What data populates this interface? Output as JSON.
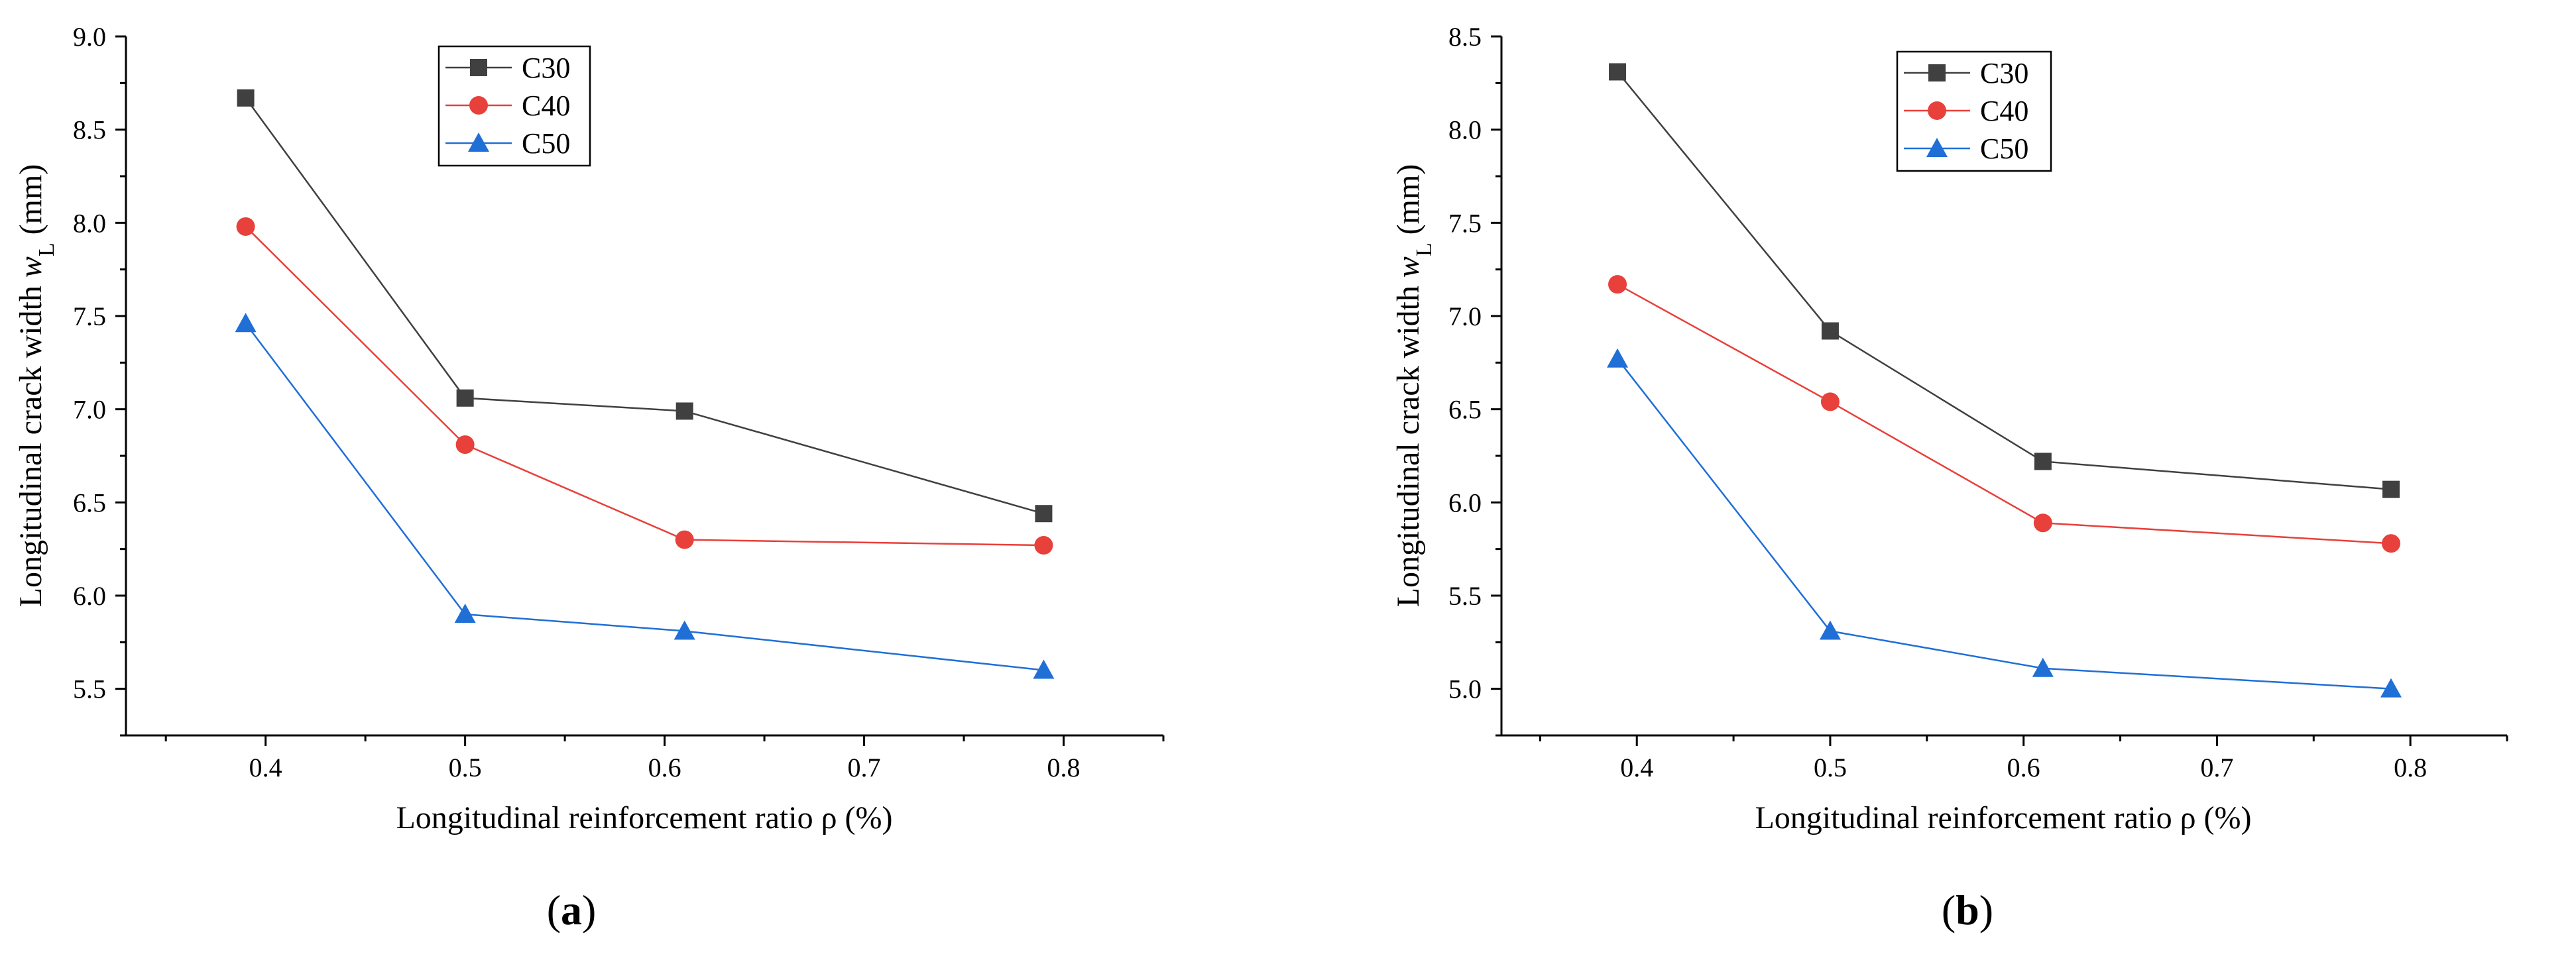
{
  "chart_data": [
    {
      "panel_label": "a",
      "type": "line",
      "x": [
        0.39,
        0.5,
        0.61,
        0.79
      ],
      "xlabel": "Longitudinal reinforcement ratio ρ (%)",
      "ylabel": {
        "main": "Longitudinal crack width",
        "var": "w",
        "sub": "L",
        "unit": "(mm)"
      },
      "xlim": [
        0.33,
        0.85
      ],
      "ylim": [
        5.25,
        9.0
      ],
      "xticks": [
        "0.4",
        "0.5",
        "0.6",
        "0.7",
        "0.8"
      ],
      "yticks": [
        "5.5",
        "6.0",
        "6.5",
        "7.0",
        "7.5",
        "8.0",
        "8.5",
        "9.0"
      ],
      "series": [
        {
          "name": "C30",
          "values": [
            8.67,
            7.06,
            6.99,
            6.44
          ]
        },
        {
          "name": "C40",
          "values": [
            7.98,
            6.81,
            6.3,
            6.27
          ]
        },
        {
          "name": "C50",
          "values": [
            7.46,
            5.9,
            5.81,
            5.6
          ]
        }
      ],
      "legend_position": "top-center",
      "grid": false
    },
    {
      "panel_label": "b",
      "type": "line",
      "x": [
        0.39,
        0.5,
        0.61,
        0.79
      ],
      "xlabel": "Longitudinal reinforcement ratio ρ (%)",
      "ylabel": {
        "main": "Longitudinal crack width",
        "var": "w",
        "sub": "L",
        "unit": "(mm)"
      },
      "xlim": [
        0.33,
        0.85
      ],
      "ylim": [
        4.75,
        8.5
      ],
      "xticks": [
        "0.4",
        "0.5",
        "0.6",
        "0.7",
        "0.8"
      ],
      "yticks": [
        "5.0",
        "5.5",
        "6.0",
        "6.5",
        "7.0",
        "7.5",
        "8.0",
        "8.5"
      ],
      "series": [
        {
          "name": "C30",
          "values": [
            8.31,
            6.92,
            6.22,
            6.07
          ]
        },
        {
          "name": "C40",
          "values": [
            7.17,
            6.54,
            5.89,
            5.78
          ]
        },
        {
          "name": "C50",
          "values": [
            6.77,
            5.31,
            5.11,
            5.0
          ]
        }
      ],
      "legend_position": "top-center",
      "grid": false
    }
  ],
  "styles": {
    "series_colors": {
      "C30": "#404040",
      "C40": "#e8403a",
      "C50": "#1f6fd6"
    },
    "series_line_colors": {
      "C30": "#404040",
      "C40": "#e8403a",
      "C50": "#1f6fd6"
    },
    "series_markers": {
      "C30": "square",
      "C40": "circle",
      "C50": "triangle"
    }
  }
}
